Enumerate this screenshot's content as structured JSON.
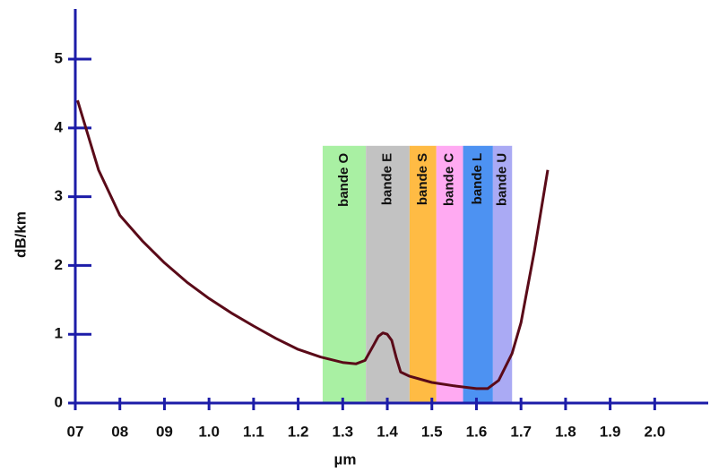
{
  "chart_data": {
    "type": "line",
    "x_label": "µm",
    "y_label": "dB/km",
    "x": [
      0.705,
      0.752,
      0.8,
      0.85,
      0.9,
      0.95,
      1.0,
      1.05,
      1.1,
      1.15,
      1.2,
      1.25,
      1.3,
      1.33,
      1.35,
      1.37,
      1.38,
      1.39,
      1.4,
      1.41,
      1.42,
      1.43,
      1.45,
      1.5,
      1.55,
      1.6,
      1.625,
      1.65,
      1.68,
      1.7,
      1.73,
      1.76
    ],
    "values": [
      4.4,
      3.39,
      2.73,
      2.36,
      2.04,
      1.76,
      1.52,
      1.31,
      1.12,
      0.94,
      0.78,
      0.67,
      0.59,
      0.57,
      0.62,
      0.85,
      0.97,
      1.02,
      1.0,
      0.91,
      0.66,
      0.45,
      0.39,
      0.3,
      0.25,
      0.21,
      0.21,
      0.33,
      0.72,
      1.17,
      2.21,
      3.39
    ],
    "color": "#5a0a18",
    "axis_color": "#1c1ca8",
    "xlim": [
      0.7,
      2.12
    ],
    "ylim": [
      0,
      5.73
    ],
    "xticks": [
      {
        "value": 0.7,
        "label": "07"
      },
      {
        "value": 0.8,
        "label": "08"
      },
      {
        "value": 0.9,
        "label": "09"
      },
      {
        "value": 1.0,
        "label": "1.0"
      },
      1.1,
      1.2,
      1.3,
      1.4,
      1.5,
      1.6,
      1.7,
      1.8,
      1.9,
      {
        "value": 2.0,
        "label": "2.0"
      }
    ],
    "yticks": [
      0,
      1,
      2,
      3,
      4,
      5
    ],
    "band_top": 3.74,
    "bands": [
      {
        "label": "bande O",
        "start": 1.255,
        "end": 1.352,
        "color": "#a9f0a3"
      },
      {
        "label": "bande E",
        "start": 1.352,
        "end": 1.45,
        "color": "#c2c2c2"
      },
      {
        "label": "bande S",
        "start": 1.45,
        "end": 1.51,
        "color": "#ffbb44"
      },
      {
        "label": "bande C",
        "start": 1.51,
        "end": 1.57,
        "color": "#ffaaf2"
      },
      {
        "label": "bande L",
        "start": 1.57,
        "end": 1.637,
        "color": "#4d92f2"
      },
      {
        "label": "bande U",
        "start": 1.637,
        "end": 1.68,
        "color": "#aaaaf4"
      }
    ]
  }
}
